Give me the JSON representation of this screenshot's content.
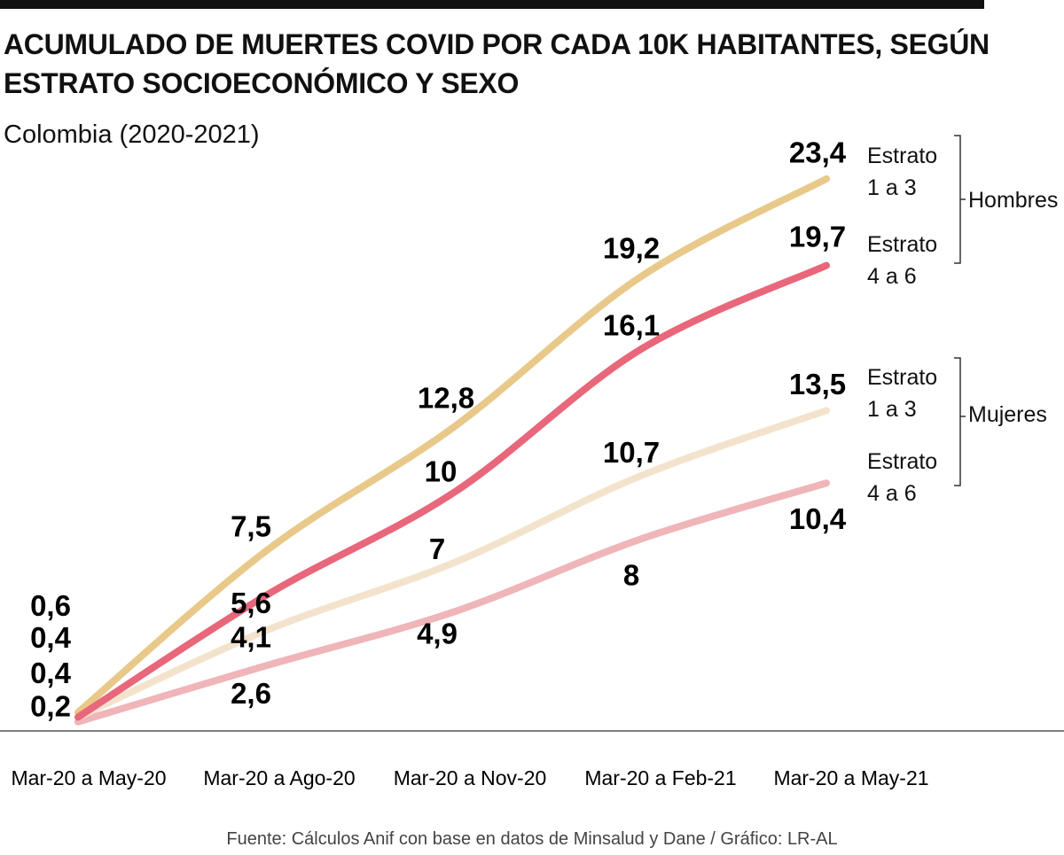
{
  "chart_data": {
    "type": "line",
    "title": "ACUMULADO DE MUERTES COVID POR CADA 10K HABITANTES, SEGÚN ESTRATO SOCIOECONÓMICO Y SEXO",
    "subtitle": "Colombia (2020-2021)",
    "source": "Fuente: Cálculos Anif con base en datos de Minsalud y Dane / Gráfico: LR-AL",
    "categories": [
      "Mar-20 a May-20",
      "Mar-20 a Ago-20",
      "Mar-20 a Nov-20",
      "Mar-20 a Feb-21",
      "Mar-20 a May-21"
    ],
    "ylim": [
      0,
      24
    ],
    "series": [
      {
        "name": "Estrato 1 a 3",
        "group": "Hombres",
        "color": "#e8c98a",
        "values": [
          0.6,
          7.5,
          12.8,
          19.2,
          23.4
        ],
        "value_labels": [
          "0,6",
          "7,5",
          "12,8",
          "19,2",
          "23,4"
        ]
      },
      {
        "name": "Estrato 4 a 6",
        "group": "Hombres",
        "color": "#e8677a",
        "values": [
          0.4,
          5.6,
          10,
          16.1,
          19.7
        ],
        "value_labels": [
          "0,4",
          "5,6",
          "10",
          "16,1",
          "19,7"
        ]
      },
      {
        "name": "Estrato 1 a 3",
        "group": "Mujeres",
        "color": "#f3e3cc",
        "values": [
          0.4,
          4.1,
          7,
          10.7,
          13.5
        ],
        "value_labels": [
          "0,4",
          "4,1",
          "7",
          "10,7",
          "13,5"
        ]
      },
      {
        "name": "Estrato 4 a 6",
        "group": "Mujeres",
        "color": "#efb5b8",
        "values": [
          0.2,
          2.6,
          4.9,
          8,
          10.4
        ],
        "value_labels": [
          "0,2",
          "2,6",
          "4,9",
          "8",
          "10,4"
        ]
      }
    ]
  }
}
